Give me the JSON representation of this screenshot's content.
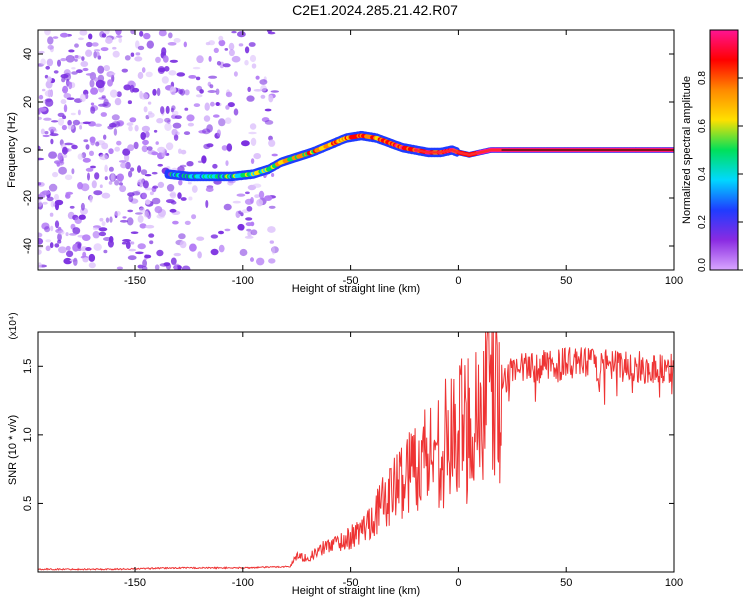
{
  "page_title": "C2E1.2024.285.21.42.R07",
  "colors": {
    "snr_line": "#ee3333",
    "ridge": "#ff2d2d",
    "noise": "#8a2be2",
    "frame": "#000000"
  },
  "colormap": [
    "#d9a6ff",
    "#8a2be2",
    "#1f3cff",
    "#00d8ff",
    "#00e05a",
    "#ffe000",
    "#ff8a00",
    "#ff0000",
    "#ff1493"
  ],
  "chart_data": [
    {
      "type": "heatmap",
      "title": "C2E1.2024.285.21.42.R07",
      "xlabel": "Height of straight line (km)",
      "ylabel": "Frequency (Hz)",
      "xlim": [
        -195,
        100
      ],
      "ylim": [
        -50,
        50
      ],
      "x_ticks": [
        "-150",
        "-100",
        "-50",
        "0",
        "50",
        "100"
      ],
      "x_tick_values": [
        -150,
        -100,
        -50,
        0,
        50,
        100
      ],
      "y_ticks": [
        "-40",
        "-20",
        "0",
        "20",
        "40"
      ],
      "y_tick_values": [
        -40,
        -20,
        0,
        20,
        40
      ],
      "colorbar": {
        "label": "Normalized spectral amplitude",
        "range": [
          0.0,
          1.0
        ],
        "ticks": [
          "0.0",
          "0.2",
          "0.4",
          "0.6",
          "0.8"
        ],
        "tick_values": [
          0.0,
          0.2,
          0.4,
          0.6,
          0.8
        ]
      },
      "ridge": {
        "x": [
          -135,
          -125,
          -115,
          -105,
          -95,
          -88,
          -82,
          -75,
          -68,
          -60,
          -52,
          -45,
          -38,
          -32,
          -26,
          -20,
          -14,
          -8,
          -3,
          0,
          5,
          15,
          30,
          50,
          70,
          100
        ],
        "frequency": [
          -10,
          -11,
          -11,
          -11,
          -10,
          -8,
          -5,
          -3,
          -1,
          2,
          5,
          6,
          5,
          3,
          1,
          0,
          -1,
          -1,
          0,
          -1,
          -2,
          0,
          0,
          0,
          0,
          0
        ],
        "amplitude": [
          0.3,
          0.35,
          0.4,
          0.45,
          0.5,
          0.55,
          0.6,
          0.65,
          0.7,
          0.72,
          0.75,
          0.78,
          0.8,
          0.82,
          0.85,
          0.88,
          0.9,
          0.9,
          0.92,
          0.92,
          0.93,
          0.95,
          0.95,
          0.95,
          0.95,
          0.95
        ]
      },
      "noise_region": [
        -195,
        -85
      ]
    },
    {
      "type": "line",
      "xlabel": "Height of straight line (km)",
      "ylabel": "SNR (10 * v/v)",
      "y_scale_label": "(x10⁴)",
      "xlim": [
        -195,
        100
      ],
      "ylim": [
        0,
        1.75
      ],
      "x_ticks": [
        "-150",
        "-100",
        "-50",
        "0",
        "50",
        "100"
      ],
      "x_tick_values": [
        -150,
        -100,
        -50,
        0,
        50,
        100
      ],
      "y_ticks": [
        "0.5",
        "1.0",
        "1.5"
      ],
      "y_tick_values": [
        0.5,
        1.0,
        1.5
      ],
      "series": [
        {
          "x": [
            -195,
            -160,
            -130,
            -100,
            -78,
            -75,
            -70,
            -65,
            -60,
            -55,
            -50,
            -45,
            -40,
            -35,
            -30,
            -25,
            -20,
            -15,
            -10,
            -5,
            0,
            5,
            10,
            15,
            20,
            25,
            30,
            40,
            50,
            60,
            70,
            80,
            90,
            100
          ],
          "y": [
            0.02,
            0.02,
            0.03,
            0.03,
            0.04,
            0.12,
            0.1,
            0.15,
            0.2,
            0.22,
            0.25,
            0.3,
            0.4,
            0.5,
            0.6,
            0.7,
            0.8,
            0.85,
            0.9,
            0.95,
            1.0,
            1.1,
            1.2,
            1.3,
            1.4,
            1.45,
            1.48,
            1.5,
            1.52,
            1.52,
            1.5,
            1.5,
            1.48,
            1.5
          ]
        }
      ]
    }
  ]
}
